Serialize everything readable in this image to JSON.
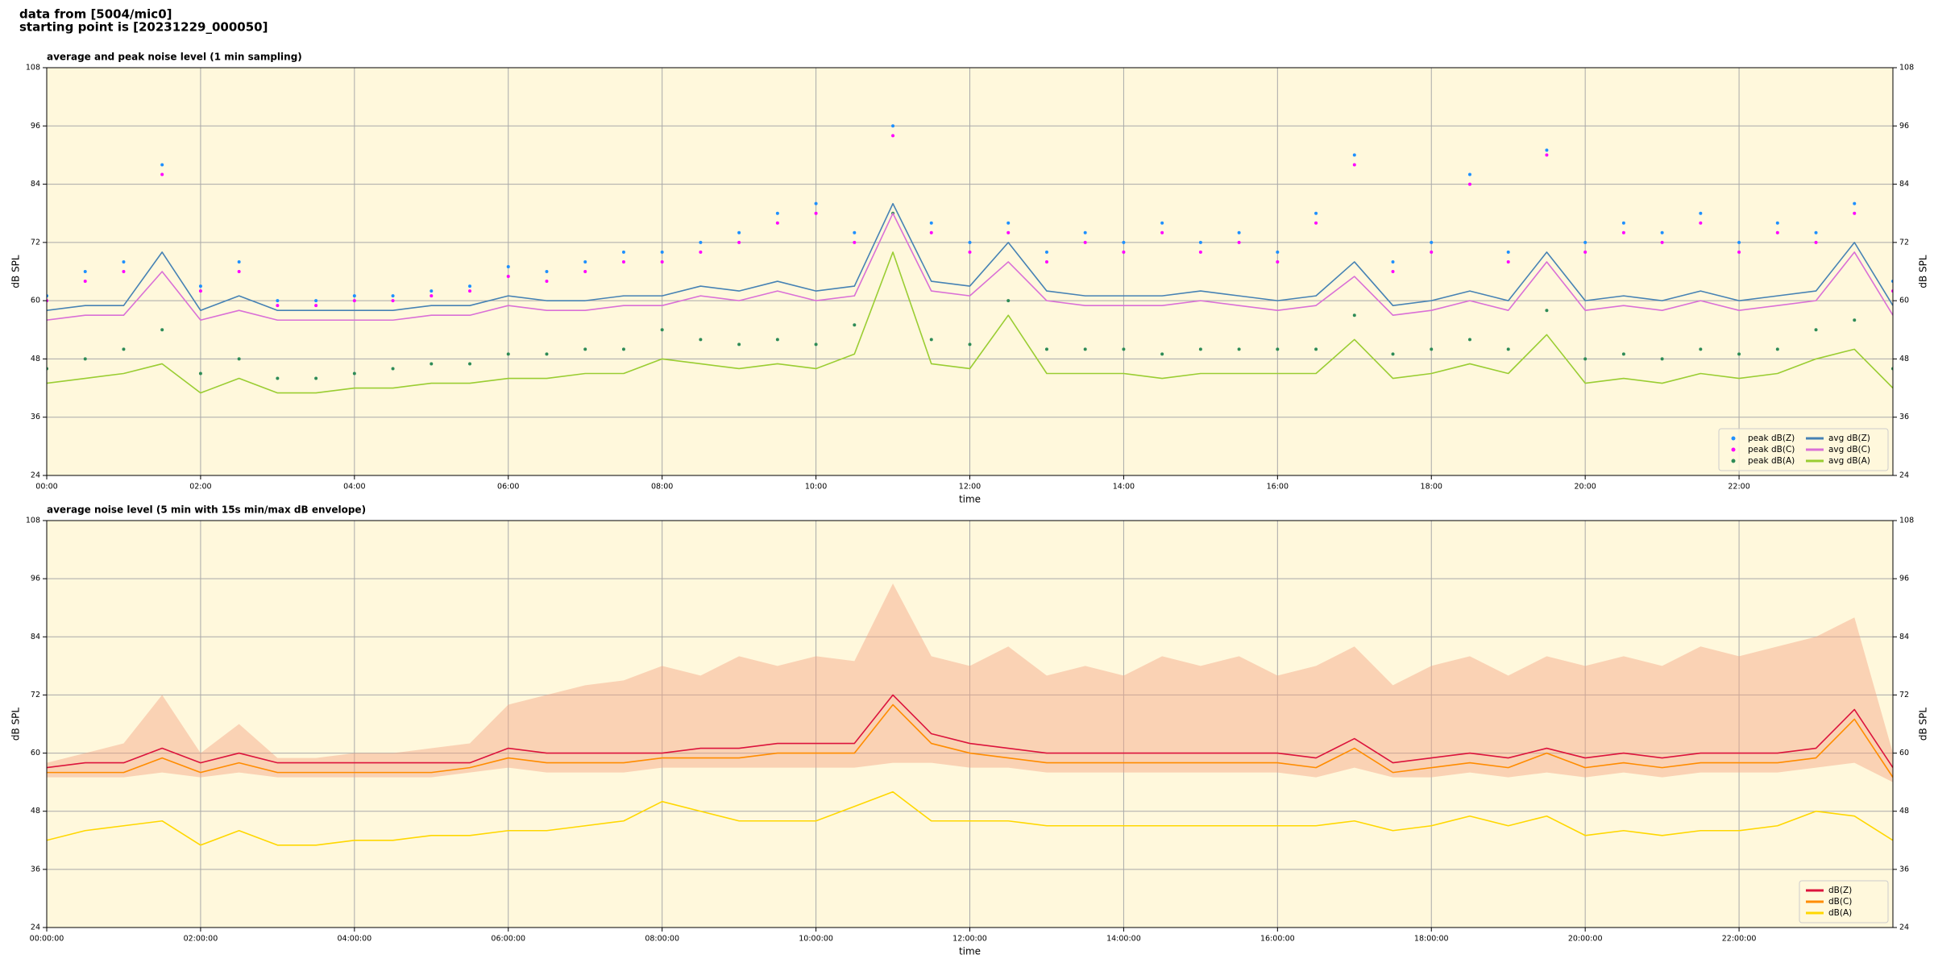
{
  "header": {
    "lines": [
      "data from [5004/mic0]",
      "starting point is [20231229_000050]"
    ]
  },
  "chart_data": [
    {
      "type": "line",
      "title": "average and peak noise level (1 min sampling)",
      "xlabel": "time",
      "ylabel": "dB SPL",
      "background": "#fff8dc",
      "grid": true,
      "legend": "lower right",
      "legend_columns": 2,
      "x": [
        0,
        0.5,
        1,
        1.5,
        2,
        2.5,
        3,
        3.5,
        4,
        4.5,
        5,
        5.5,
        6,
        6.5,
        7,
        7.5,
        8,
        8.5,
        9,
        9.5,
        10,
        10.5,
        11,
        11.5,
        12,
        12.5,
        13,
        13.5,
        14,
        14.5,
        15,
        15.5,
        16,
        16.5,
        17,
        17.5,
        18,
        18.5,
        19,
        19.5,
        20,
        20.5,
        21,
        21.5,
        22,
        22.5,
        23,
        23.5,
        24
      ],
      "xlim": [
        0,
        24
      ],
      "xticks": [
        {
          "value": 0,
          "label": "00:00"
        },
        {
          "value": 2,
          "label": "02:00"
        },
        {
          "value": 4,
          "label": "04:00"
        },
        {
          "value": 6,
          "label": "06:00"
        },
        {
          "value": 8,
          "label": "08:00"
        },
        {
          "value": 10,
          "label": "10:00"
        },
        {
          "value": 12,
          "label": "12:00"
        },
        {
          "value": 14,
          "label": "14:00"
        },
        {
          "value": 16,
          "label": "16:00"
        },
        {
          "value": 18,
          "label": "18:00"
        },
        {
          "value": 20,
          "label": "20:00"
        },
        {
          "value": 22,
          "label": "22:00"
        }
      ],
      "ylim": [
        24,
        108
      ],
      "yticks": [
        24,
        36,
        48,
        60,
        72,
        84,
        96,
        108
      ],
      "series": [
        {
          "name": "peak dB(Z)",
          "color": "#1e90ff",
          "mode": "markers",
          "values": [
            61,
            66,
            68,
            88,
            63,
            68,
            60,
            60,
            61,
            61,
            62,
            63,
            67,
            66,
            68,
            70,
            70,
            72,
            74,
            78,
            80,
            74,
            96,
            76,
            72,
            76,
            70,
            74,
            72,
            76,
            72,
            74,
            70,
            78,
            90,
            68,
            72,
            86,
            70,
            91,
            72,
            76,
            74,
            78,
            72,
            76,
            74,
            80,
            64
          ]
        },
        {
          "name": "peak dB(C)",
          "color": "#ff00ff",
          "mode": "markers",
          "values": [
            60,
            64,
            66,
            86,
            62,
            66,
            59,
            59,
            60,
            60,
            61,
            62,
            65,
            64,
            66,
            68,
            68,
            70,
            72,
            76,
            78,
            72,
            94,
            74,
            70,
            74,
            68,
            72,
            70,
            74,
            70,
            72,
            68,
            76,
            88,
            66,
            70,
            84,
            68,
            90,
            70,
            74,
            72,
            76,
            70,
            74,
            72,
            78,
            62
          ]
        },
        {
          "name": "peak dB(A)",
          "color": "#2e8b57",
          "mode": "markers",
          "values": [
            46,
            48,
            50,
            54,
            45,
            48,
            44,
            44,
            45,
            46,
            47,
            47,
            49,
            49,
            50,
            50,
            54,
            52,
            51,
            52,
            51,
            55,
            78,
            52,
            51,
            60,
            50,
            50,
            50,
            49,
            50,
            50,
            50,
            50,
            57,
            49,
            50,
            52,
            50,
            58,
            48,
            49,
            48,
            50,
            49,
            50,
            54,
            56,
            46
          ]
        },
        {
          "name": "avg dB(Z)",
          "color": "#4682b4",
          "mode": "lines",
          "values": [
            58,
            59,
            59,
            70,
            58,
            61,
            58,
            58,
            58,
            58,
            59,
            59,
            61,
            60,
            60,
            61,
            61,
            63,
            62,
            64,
            62,
            63,
            80,
            64,
            63,
            72,
            62,
            61,
            61,
            61,
            62,
            61,
            60,
            61,
            68,
            59,
            60,
            62,
            60,
            70,
            60,
            61,
            60,
            62,
            60,
            61,
            62,
            72,
            59
          ]
        },
        {
          "name": "avg dB(C)",
          "color": "#da70d6",
          "mode": "lines",
          "values": [
            56,
            57,
            57,
            66,
            56,
            58,
            56,
            56,
            56,
            56,
            57,
            57,
            59,
            58,
            58,
            59,
            59,
            61,
            60,
            62,
            60,
            61,
            78,
            62,
            61,
            68,
            60,
            59,
            59,
            59,
            60,
            59,
            58,
            59,
            65,
            57,
            58,
            60,
            58,
            68,
            58,
            59,
            58,
            60,
            58,
            59,
            60,
            70,
            57
          ]
        },
        {
          "name": "avg dB(A)",
          "color": "#9acd32",
          "mode": "lines",
          "values": [
            43,
            44,
            45,
            47,
            41,
            44,
            41,
            41,
            42,
            42,
            43,
            43,
            44,
            44,
            45,
            45,
            48,
            47,
            46,
            47,
            46,
            49,
            70,
            47,
            46,
            57,
            45,
            45,
            45,
            44,
            45,
            45,
            45,
            45,
            52,
            44,
            45,
            47,
            45,
            53,
            43,
            44,
            43,
            45,
            44,
            45,
            48,
            50,
            42
          ]
        }
      ]
    },
    {
      "type": "line",
      "title": "average noise level (5 min with 15s min/max dB envelope)",
      "xlabel": "time",
      "ylabel": "dB SPL",
      "background": "#fff8dc",
      "grid": true,
      "legend": "lower right",
      "legend_columns": 1,
      "x": [
        0,
        0.5,
        1,
        1.5,
        2,
        2.5,
        3,
        3.5,
        4,
        4.5,
        5,
        5.5,
        6,
        6.5,
        7,
        7.5,
        8,
        8.5,
        9,
        9.5,
        10,
        10.5,
        11,
        11.5,
        12,
        12.5,
        13,
        13.5,
        14,
        14.5,
        15,
        15.5,
        16,
        16.5,
        17,
        17.5,
        18,
        18.5,
        19,
        19.5,
        20,
        20.5,
        21,
        21.5,
        22,
        22.5,
        23,
        23.5,
        24
      ],
      "xlim": [
        0,
        24
      ],
      "xticks": [
        {
          "value": 0,
          "label": "00:00:00"
        },
        {
          "value": 2,
          "label": "02:00:00"
        },
        {
          "value": 4,
          "label": "04:00:00"
        },
        {
          "value": 6,
          "label": "06:00:00"
        },
        {
          "value": 8,
          "label": "08:00:00"
        },
        {
          "value": 10,
          "label": "10:00:00"
        },
        {
          "value": 12,
          "label": "12:00:00"
        },
        {
          "value": 14,
          "label": "14:00:00"
        },
        {
          "value": 16,
          "label": "16:00:00"
        },
        {
          "value": 18,
          "label": "18:00:00"
        },
        {
          "value": 20,
          "label": "20:00:00"
        },
        {
          "value": 22,
          "label": "22:00:00"
        }
      ],
      "ylim": [
        24,
        108
      ],
      "yticks": [
        24,
        36,
        48,
        60,
        72,
        84,
        96,
        108
      ],
      "envelope": {
        "color": "#f4a582",
        "lower": [
          55,
          55,
          55,
          56,
          55,
          56,
          55,
          55,
          55,
          55,
          55,
          56,
          57,
          56,
          56,
          56,
          57,
          57,
          57,
          57,
          57,
          57,
          58,
          58,
          57,
          57,
          56,
          56,
          56,
          56,
          56,
          56,
          56,
          55,
          57,
          55,
          55,
          56,
          55,
          56,
          55,
          56,
          55,
          56,
          56,
          56,
          57,
          58,
          54
        ],
        "upper": [
          58,
          60,
          62,
          72,
          60,
          66,
          59,
          59,
          60,
          60,
          61,
          62,
          70,
          72,
          74,
          75,
          78,
          76,
          80,
          78,
          80,
          79,
          95,
          80,
          78,
          82,
          76,
          78,
          76,
          80,
          78,
          80,
          76,
          78,
          82,
          74,
          78,
          80,
          76,
          80,
          78,
          80,
          78,
          82,
          80,
          82,
          84,
          88,
          60
        ]
      },
      "series": [
        {
          "name": "dB(Z)",
          "color": "#dc143c",
          "mode": "lines",
          "values": [
            57,
            58,
            58,
            61,
            58,
            60,
            58,
            58,
            58,
            58,
            58,
            58,
            61,
            60,
            60,
            60,
            60,
            61,
            61,
            62,
            62,
            62,
            72,
            64,
            62,
            61,
            60,
            60,
            60,
            60,
            60,
            60,
            60,
            59,
            63,
            58,
            59,
            60,
            59,
            61,
            59,
            60,
            59,
            60,
            60,
            60,
            61,
            69,
            57
          ]
        },
        {
          "name": "dB(C)",
          "color": "#ff8c00",
          "mode": "lines",
          "values": [
            56,
            56,
            56,
            59,
            56,
            58,
            56,
            56,
            56,
            56,
            56,
            57,
            59,
            58,
            58,
            58,
            59,
            59,
            59,
            60,
            60,
            60,
            70,
            62,
            60,
            59,
            58,
            58,
            58,
            58,
            58,
            58,
            58,
            57,
            61,
            56,
            57,
            58,
            57,
            60,
            57,
            58,
            57,
            58,
            58,
            58,
            59,
            67,
            55
          ]
        },
        {
          "name": "dB(A)",
          "color": "#ffd700",
          "mode": "lines",
          "values": [
            42,
            44,
            45,
            46,
            41,
            44,
            41,
            41,
            42,
            42,
            43,
            43,
            44,
            44,
            45,
            46,
            50,
            48,
            46,
            46,
            46,
            49,
            52,
            46,
            46,
            46,
            45,
            45,
            45,
            45,
            45,
            45,
            45,
            45,
            46,
            44,
            45,
            47,
            45,
            47,
            43,
            44,
            43,
            44,
            44,
            45,
            48,
            47,
            42
          ]
        }
      ]
    }
  ]
}
